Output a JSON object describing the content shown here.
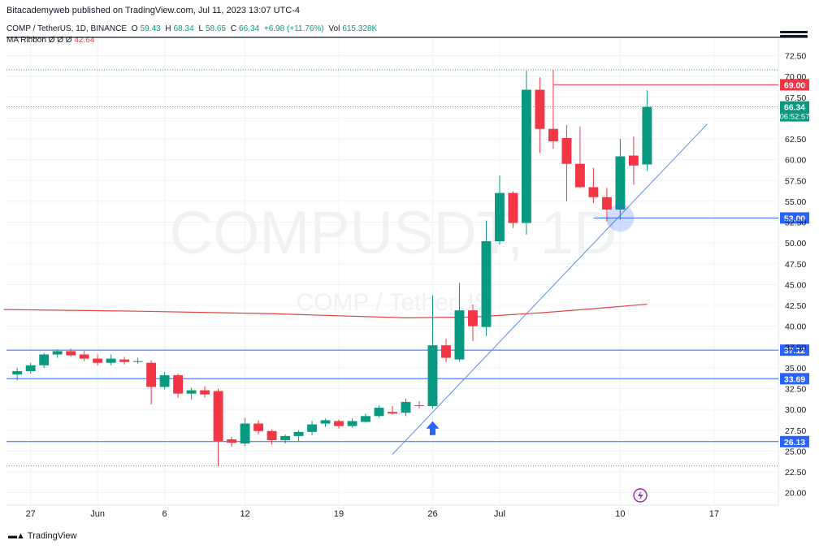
{
  "header": {
    "publisher": "Bitacademyweb published on TradingView.com, Jul 11, 2023 13:07 UTC-4",
    "symbol": "COMP / TetherUS, 1D, BINANCE",
    "o_label": "O",
    "o": "59.43",
    "h_label": "H",
    "h": "68.34",
    "l_label": "L",
    "l": "58.65",
    "c_label": "C",
    "c": "66.34",
    "change": "+6.98 (+11.76%)",
    "vol_label": "Vol",
    "vol": "615.328K",
    "ma_label": "MA Ribbon  Ø  Ø  Ø",
    "ma_value": "42.64"
  },
  "watermark": {
    "main": "COMPUSDT, 1D",
    "sub": "COMP / TetherUS"
  },
  "footer": {
    "brand": "TradingView"
  },
  "chart_data": {
    "type": "candlestick",
    "y_ticks": [
      "72.50",
      "70.00",
      "67.50",
      "65.00",
      "62.50",
      "60.00",
      "57.50",
      "55.00",
      "52.50",
      "50.00",
      "47.50",
      "45.00",
      "42.50",
      "40.00",
      "37.50",
      "35.00",
      "32.50",
      "30.00",
      "27.50",
      "25.00",
      "22.50",
      "20.00"
    ],
    "y_range": [
      18.5,
      74.5
    ],
    "x_ticks": [
      {
        "label": "27",
        "day": 0
      },
      {
        "label": "Jun",
        "day": 5
      },
      {
        "label": "6",
        "day": 10
      },
      {
        "label": "12",
        "day": 16
      },
      {
        "label": "19",
        "day": 23
      },
      {
        "label": "26",
        "day": 30
      },
      {
        "label": "Jul",
        "day": 35
      },
      {
        "label": "10",
        "day": 44
      },
      {
        "label": "17",
        "day": 51
      }
    ],
    "x_range": [
      -1.8,
      55.8
    ],
    "candles": [
      {
        "d": -2,
        "o": 35.0,
        "h": 35.3,
        "l": 33.9,
        "c": 34.2
      },
      {
        "d": -1,
        "o": 34.2,
        "h": 35.0,
        "l": 33.5,
        "c": 34.6
      },
      {
        "d": 0,
        "o": 34.6,
        "h": 35.6,
        "l": 34.3,
        "c": 35.3
      },
      {
        "d": 1,
        "o": 35.3,
        "h": 36.8,
        "l": 35.0,
        "c": 36.6
      },
      {
        "d": 2,
        "o": 36.6,
        "h": 37.2,
        "l": 36.2,
        "c": 37.0
      },
      {
        "d": 3,
        "o": 37.0,
        "h": 37.3,
        "l": 36.3,
        "c": 36.5
      },
      {
        "d": 4,
        "o": 36.6,
        "h": 37.0,
        "l": 35.8,
        "c": 36.1
      },
      {
        "d": 5,
        "o": 36.1,
        "h": 36.6,
        "l": 35.3,
        "c": 35.6
      },
      {
        "d": 6,
        "o": 35.6,
        "h": 36.6,
        "l": 35.3,
        "c": 36.1
      },
      {
        "d": 7,
        "o": 36.0,
        "h": 36.3,
        "l": 35.4,
        "c": 35.7
      },
      {
        "d": 8,
        "o": 35.7,
        "h": 36.2,
        "l": 35.5,
        "c": 35.8
      },
      {
        "d": 9,
        "o": 35.6,
        "h": 35.9,
        "l": 30.6,
        "c": 32.7
      },
      {
        "d": 10,
        "o": 32.7,
        "h": 34.5,
        "l": 32.4,
        "c": 34.1
      },
      {
        "d": 11,
        "o": 34.1,
        "h": 34.3,
        "l": 31.4,
        "c": 31.9
      },
      {
        "d": 12,
        "o": 31.9,
        "h": 32.6,
        "l": 31.2,
        "c": 32.3
      },
      {
        "d": 13,
        "o": 32.3,
        "h": 32.8,
        "l": 31.4,
        "c": 31.8
      },
      {
        "d": 14,
        "o": 32.2,
        "h": 32.5,
        "l": 23.2,
        "c": 26.2
      },
      {
        "d": 15,
        "o": 26.4,
        "h": 26.7,
        "l": 25.5,
        "c": 26.0
      },
      {
        "d": 16,
        "o": 25.9,
        "h": 29.0,
        "l": 25.6,
        "c": 28.3
      },
      {
        "d": 17,
        "o": 28.3,
        "h": 28.7,
        "l": 27.0,
        "c": 27.4
      },
      {
        "d": 18,
        "o": 27.4,
        "h": 27.6,
        "l": 25.8,
        "c": 26.3
      },
      {
        "d": 19,
        "o": 26.3,
        "h": 27.0,
        "l": 25.9,
        "c": 26.8
      },
      {
        "d": 20,
        "o": 26.8,
        "h": 27.5,
        "l": 26.2,
        "c": 27.3
      },
      {
        "d": 21,
        "o": 27.3,
        "h": 28.6,
        "l": 26.9,
        "c": 28.2
      },
      {
        "d": 22,
        "o": 28.3,
        "h": 28.9,
        "l": 27.9,
        "c": 28.7
      },
      {
        "d": 23,
        "o": 28.6,
        "h": 28.8,
        "l": 27.7,
        "c": 28.0
      },
      {
        "d": 24,
        "o": 28.0,
        "h": 28.9,
        "l": 27.8,
        "c": 28.6
      },
      {
        "d": 25,
        "o": 28.5,
        "h": 29.5,
        "l": 28.4,
        "c": 29.2
      },
      {
        "d": 26,
        "o": 29.2,
        "h": 30.5,
        "l": 29.0,
        "c": 30.2
      },
      {
        "d": 27,
        "o": 29.7,
        "h": 30.4,
        "l": 29.4,
        "c": 29.5
      },
      {
        "d": 28,
        "o": 29.6,
        "h": 31.3,
        "l": 29.2,
        "c": 30.9
      },
      {
        "d": 29,
        "o": 30.5,
        "h": 31.0,
        "l": 30.1,
        "c": 30.4
      },
      {
        "d": 30,
        "o": 30.4,
        "h": 43.7,
        "l": 30.1,
        "c": 37.7
      },
      {
        "d": 31,
        "o": 37.7,
        "h": 38.5,
        "l": 35.7,
        "c": 36.2
      },
      {
        "d": 32,
        "o": 36.0,
        "h": 45.2,
        "l": 35.7,
        "c": 41.9
      },
      {
        "d": 33,
        "o": 41.9,
        "h": 42.6,
        "l": 38.2,
        "c": 40.0
      },
      {
        "d": 34,
        "o": 39.9,
        "h": 52.7,
        "l": 38.8,
        "c": 50.2
      },
      {
        "d": 35,
        "o": 50.2,
        "h": 58.1,
        "l": 49.8,
        "c": 56.0
      },
      {
        "d": 36,
        "o": 56.0,
        "h": 56.2,
        "l": 51.8,
        "c": 52.4
      },
      {
        "d": 37,
        "o": 52.4,
        "h": 70.7,
        "l": 51.0,
        "c": 68.4
      },
      {
        "d": 38,
        "o": 68.4,
        "h": 69.9,
        "l": 60.8,
        "c": 63.7
      },
      {
        "d": 39,
        "o": 63.7,
        "h": 70.8,
        "l": 61.3,
        "c": 62.2
      },
      {
        "d": 40,
        "o": 62.6,
        "h": 64.2,
        "l": 55.0,
        "c": 59.5
      },
      {
        "d": 41,
        "o": 59.5,
        "h": 64.0,
        "l": 56.6,
        "c": 56.7
      },
      {
        "d": 42,
        "o": 56.7,
        "h": 59.0,
        "l": 54.8,
        "c": 55.5
      },
      {
        "d": 43,
        "o": 55.5,
        "h": 56.6,
        "l": 52.6,
        "c": 54.0
      },
      {
        "d": 44,
        "o": 54.0,
        "h": 62.5,
        "l": 52.8,
        "c": 60.4
      },
      {
        "d": 45,
        "o": 60.5,
        "h": 62.8,
        "l": 57.0,
        "c": 59.3
      },
      {
        "d": 46,
        "o": 59.43,
        "h": 68.34,
        "l": 58.65,
        "c": 66.34
      }
    ],
    "ma_line": [
      {
        "d": -2,
        "v": 42.0
      },
      {
        "d": 8,
        "v": 41.8
      },
      {
        "d": 18,
        "v": 41.5
      },
      {
        "d": 28,
        "v": 41.0
      },
      {
        "d": 33,
        "v": 41.1
      },
      {
        "d": 38,
        "v": 41.6
      },
      {
        "d": 42,
        "v": 42.1
      },
      {
        "d": 46,
        "v": 42.64
      }
    ],
    "trendline": {
      "from": {
        "d": 27,
        "v": 24.6
      },
      "to": {
        "d": 50.5,
        "v": 64.3
      }
    },
    "horizontal_levels": [
      {
        "value": 69.0,
        "label": "69.00",
        "color": "#f23645",
        "from_d": 39
      },
      {
        "value": 53.0,
        "label": "53.00",
        "color": "#2962ff",
        "from_d": 42
      },
      {
        "value": 37.12,
        "label": "37.12",
        "color": "#2962ff",
        "from_d": -3
      },
      {
        "value": 33.69,
        "label": "33.69",
        "color": "#2962ff",
        "from_d": -3
      },
      {
        "value": 26.13,
        "label": "26.13",
        "color": "#2962ff",
        "from_d": -3
      }
    ],
    "price_label": {
      "value": 66.34,
      "label": "66.34",
      "countdown": "06:52:57",
      "color": "#089981"
    },
    "dotted_levels": [
      70.8,
      66.34,
      23.2
    ],
    "arrow_up": {
      "d": 30,
      "v": 27.7
    },
    "highlight_circle": {
      "d": 44,
      "v": 53.0
    },
    "colors": {
      "up": "#089981",
      "down": "#f23645",
      "ma": "#e0463f",
      "trend": "#5b8def"
    }
  }
}
